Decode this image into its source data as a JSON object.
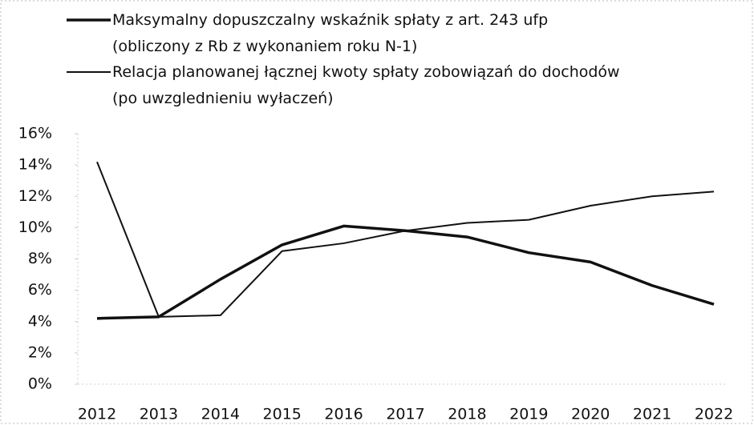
{
  "chart_data": {
    "type": "line",
    "x": [
      "2012",
      "2013",
      "2014",
      "2015",
      "2016",
      "2017",
      "2018",
      "2019",
      "2020",
      "2021",
      "2022"
    ],
    "series": [
      {
        "name": "Maksymalny dopuszczalny wskaźnik spłaty z art. 243 ufp\n(obliczony z Rb z wykonaniem roku N-1)",
        "color": "#111111",
        "width": 3.5,
        "values": [
          4.2,
          4.3,
          6.7,
          8.9,
          10.1,
          9.8,
          9.4,
          8.4,
          7.8,
          6.3,
          5.1
        ]
      },
      {
        "name": "Relacja planowanej łącznej kwoty spłaty zobowiązań do dochodów\n(po uwzglednieniu wyłaczeń)",
        "color": "#111111",
        "width": 2,
        "values": [
          14.2,
          4.3,
          4.4,
          8.5,
          9.0,
          9.8,
          10.3,
          10.5,
          11.4,
          12.0,
          12.3
        ]
      }
    ],
    "ylim": [
      0,
      16
    ],
    "yticks": [
      {
        "value": 0,
        "label": "0%"
      },
      {
        "value": 2,
        "label": "2%"
      },
      {
        "value": 4,
        "label": "4%"
      },
      {
        "value": 6,
        "label": "6%"
      },
      {
        "value": 8,
        "label": "8%"
      },
      {
        "value": 10,
        "label": "10%"
      },
      {
        "value": 12,
        "label": "12%"
      },
      {
        "value": 14,
        "label": "14%"
      },
      {
        "value": 16,
        "label": "16%"
      }
    ],
    "grid": false
  }
}
